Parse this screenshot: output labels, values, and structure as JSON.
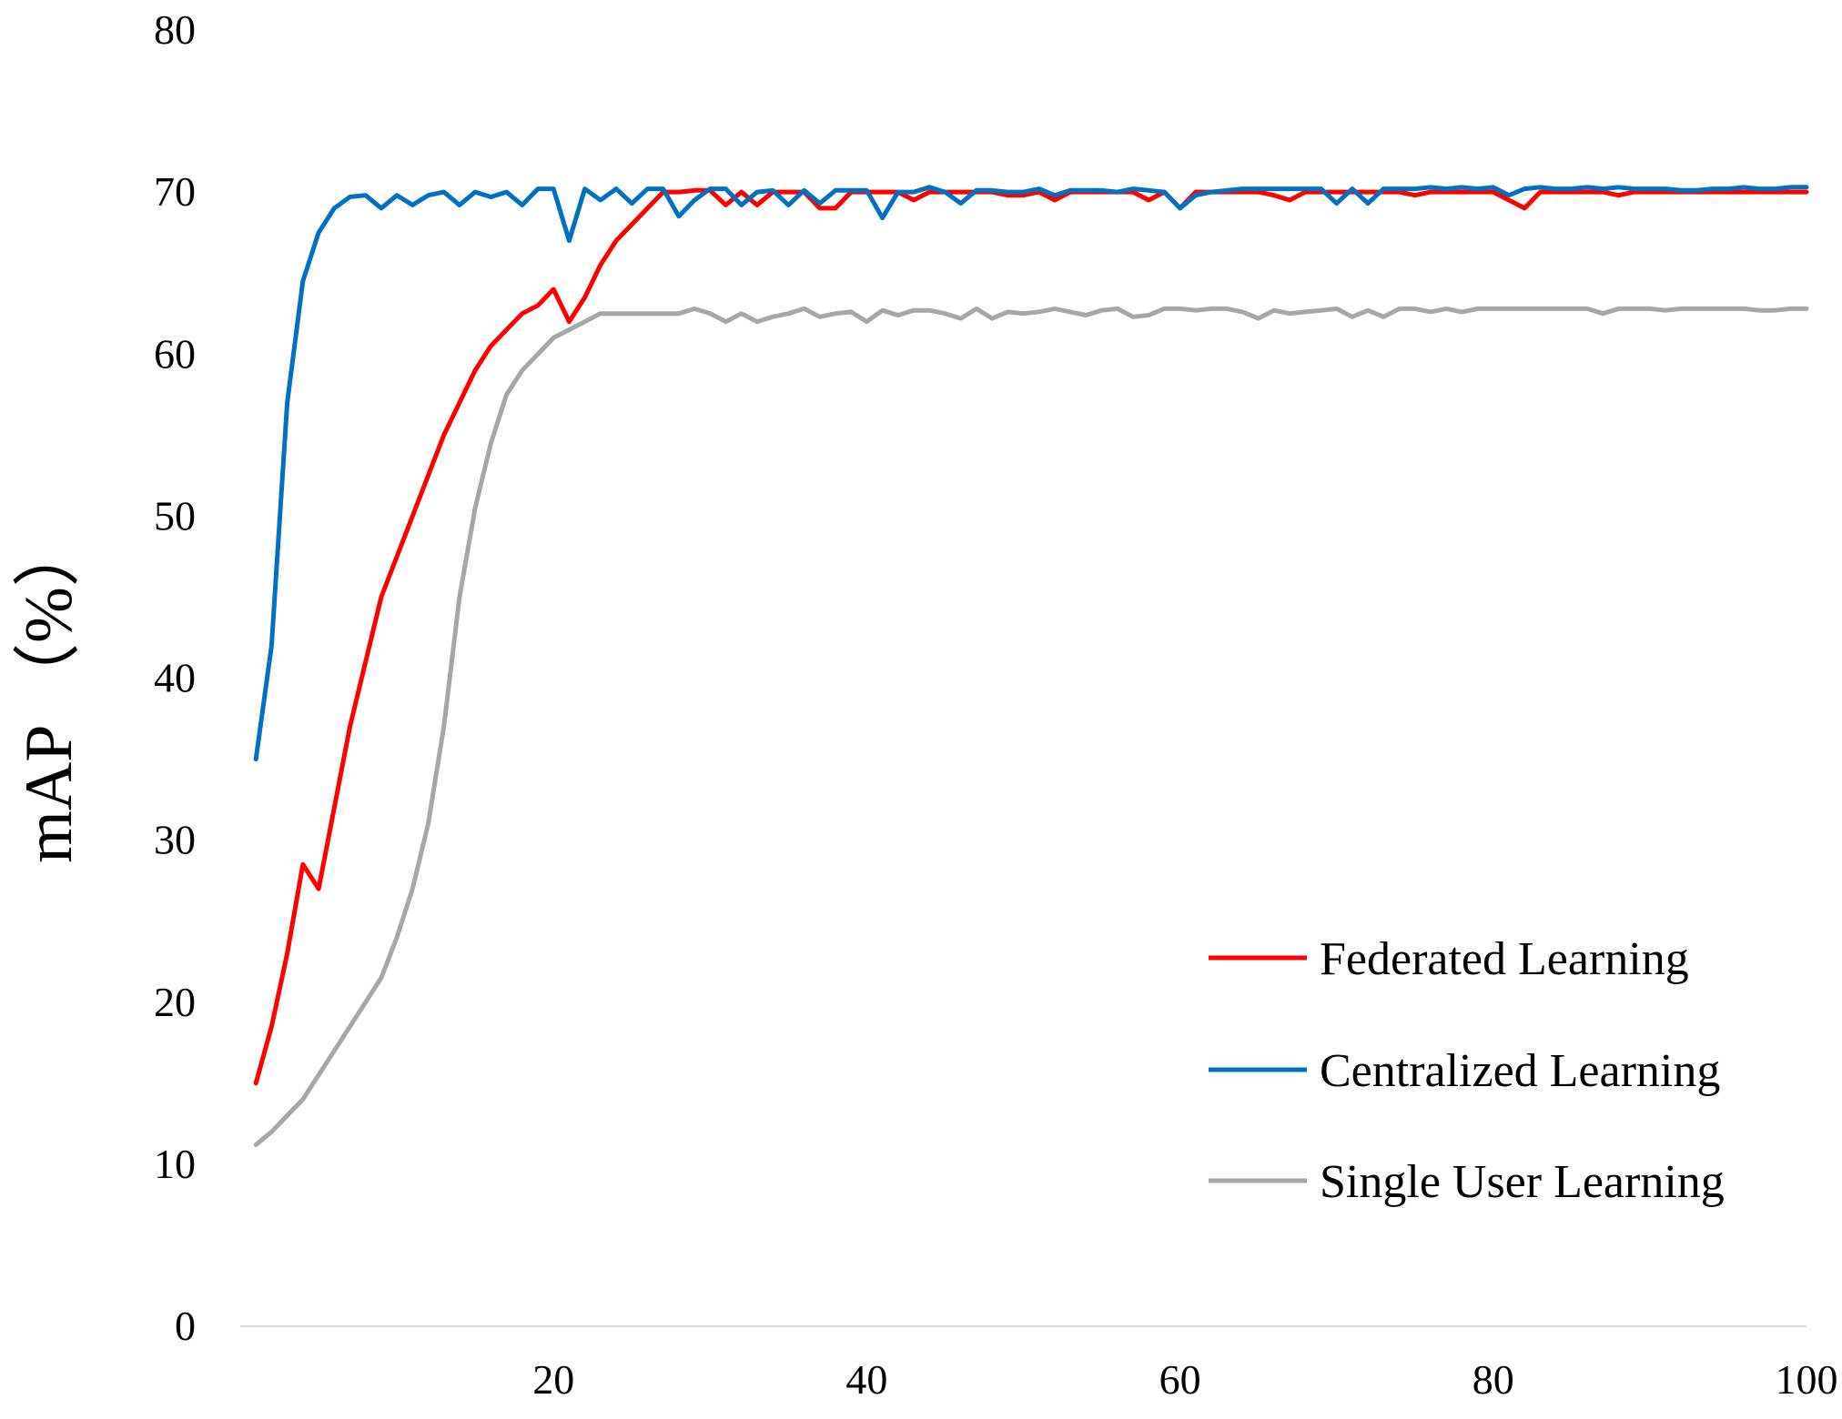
{
  "chart_data": {
    "type": "line",
    "title": "",
    "xlabel": "",
    "ylabel": "mAP （%）",
    "xlim": [
      0,
      100
    ],
    "ylim": [
      0,
      80
    ],
    "x_ticks": [
      20,
      40,
      60,
      80,
      100
    ],
    "y_ticks": [
      0,
      10,
      20,
      30,
      40,
      50,
      60,
      70,
      80
    ],
    "grid": false,
    "legend_position": "bottom-right",
    "x": [
      1,
      2,
      3,
      4,
      5,
      6,
      7,
      8,
      9,
      10,
      11,
      12,
      13,
      14,
      15,
      16,
      17,
      18,
      19,
      20,
      21,
      22,
      23,
      24,
      25,
      26,
      27,
      28,
      29,
      30,
      31,
      32,
      33,
      34,
      35,
      36,
      37,
      38,
      39,
      40,
      41,
      42,
      43,
      44,
      45,
      46,
      47,
      48,
      49,
      50,
      51,
      52,
      53,
      54,
      55,
      56,
      57,
      58,
      59,
      60,
      61,
      62,
      63,
      64,
      65,
      66,
      67,
      68,
      69,
      70,
      71,
      72,
      73,
      74,
      75,
      76,
      77,
      78,
      79,
      80,
      81,
      82,
      83,
      84,
      85,
      86,
      87,
      88,
      89,
      90,
      91,
      92,
      93,
      94,
      95,
      96,
      97,
      98,
      99,
      100
    ],
    "series": [
      {
        "name": "Federated Learning",
        "color": "#ff0000",
        "values": [
          15,
          18.5,
          23,
          28.5,
          27,
          32,
          37,
          41,
          45,
          47.5,
          50,
          52.5,
          55,
          57,
          59,
          60.5,
          61.5,
          62.5,
          63,
          64,
          62,
          63.5,
          65.5,
          67,
          68,
          69,
          70,
          70,
          70.1,
          70.1,
          69.2,
          70,
          69.2,
          70,
          70,
          70,
          69,
          69,
          70,
          70,
          70,
          70,
          69.5,
          70,
          70,
          70,
          70,
          70,
          69.8,
          69.8,
          70,
          69.5,
          70,
          70,
          70,
          70,
          70,
          69.5,
          70,
          69,
          70,
          70,
          70,
          70,
          70,
          69.8,
          69.5,
          70,
          70,
          70,
          70,
          70,
          70,
          70,
          69.8,
          70,
          70,
          70,
          70,
          70,
          69.5,
          69,
          70,
          70,
          70,
          70,
          70,
          69.8,
          70,
          70,
          70,
          70,
          70,
          70,
          70,
          70,
          70,
          70,
          70,
          70
        ]
      },
      {
        "name": "Centralized Learning",
        "color": "#0070c0",
        "values": [
          35,
          42,
          57,
          64.5,
          67.5,
          69,
          69.7,
          69.8,
          69,
          69.8,
          69.2,
          69.8,
          70,
          69.2,
          70,
          69.7,
          70,
          69.2,
          70.2,
          70.2,
          67,
          70.2,
          69.5,
          70.2,
          69.3,
          70.2,
          70.2,
          68.5,
          69.5,
          70.2,
          70.2,
          69.2,
          70,
          70.1,
          69.2,
          70.1,
          69.3,
          70.1,
          70.1,
          70.1,
          68.4,
          70,
          70,
          70.3,
          70,
          69.3,
          70.1,
          70.1,
          70,
          70,
          70.2,
          69.8,
          70.1,
          70.1,
          70.1,
          70,
          70.2,
          70.1,
          70,
          69,
          69.8,
          70,
          70.1,
          70.2,
          70.2,
          70.2,
          70.2,
          70.2,
          70.2,
          69.3,
          70.2,
          69.3,
          70.2,
          70.2,
          70.2,
          70.3,
          70.2,
          70.3,
          70.2,
          70.3,
          69.8,
          70.2,
          70.3,
          70.2,
          70.2,
          70.3,
          70.2,
          70.3,
          70.2,
          70.2,
          70.2,
          70.1,
          70.1,
          70.2,
          70.2,
          70.3,
          70.2,
          70.2,
          70.3,
          70.3
        ]
      },
      {
        "name": "Single User Learning",
        "color": "#a6a6a6",
        "values": [
          11.2,
          12,
          13,
          14,
          15.5,
          17,
          18.5,
          20,
          21.5,
          24,
          27,
          31,
          37,
          45,
          50.5,
          54.5,
          57.5,
          59,
          60,
          61,
          61.5,
          62,
          62.5,
          62.5,
          62.5,
          62.5,
          62.5,
          62.5,
          62.8,
          62.5,
          62,
          62.5,
          62,
          62.3,
          62.5,
          62.8,
          62.3,
          62.5,
          62.6,
          62,
          62.7,
          62.4,
          62.7,
          62.7,
          62.5,
          62.2,
          62.8,
          62.2,
          62.6,
          62.5,
          62.6,
          62.8,
          62.6,
          62.4,
          62.7,
          62.8,
          62.3,
          62.4,
          62.8,
          62.8,
          62.7,
          62.8,
          62.8,
          62.6,
          62.2,
          62.7,
          62.5,
          62.6,
          62.7,
          62.8,
          62.3,
          62.7,
          62.3,
          62.8,
          62.8,
          62.6,
          62.8,
          62.6,
          62.8,
          62.8,
          62.8,
          62.8,
          62.8,
          62.8,
          62.8,
          62.8,
          62.5,
          62.8,
          62.8,
          62.8,
          62.7,
          62.8,
          62.8,
          62.8,
          62.8,
          62.8,
          62.7,
          62.7,
          62.8,
          62.8
        ]
      }
    ]
  }
}
